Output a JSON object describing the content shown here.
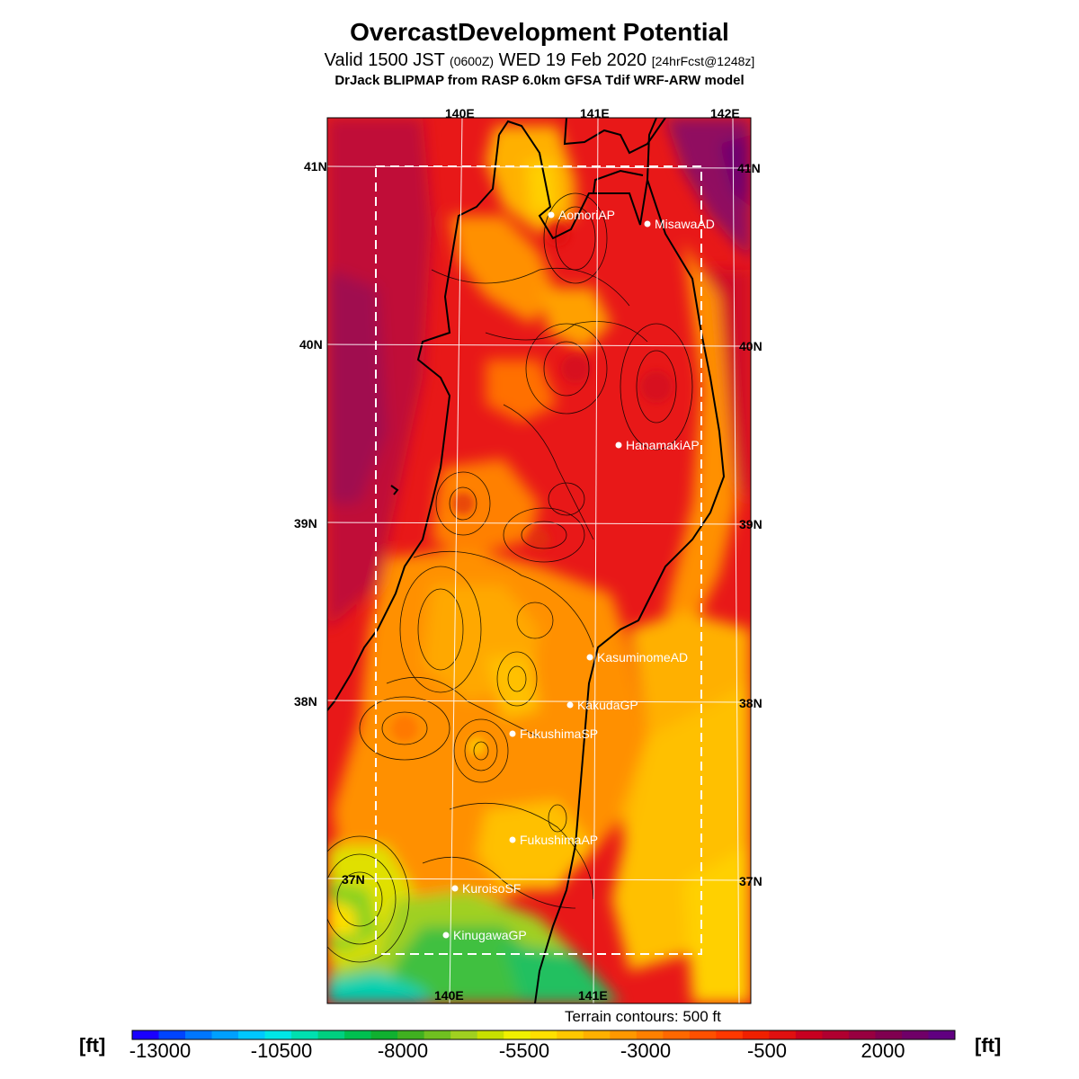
{
  "header": {
    "title": "OvercastDevelopment Potential",
    "valid_prefix": "Valid 1500 JST",
    "valid_utc": "(0600Z)",
    "valid_date": "WED 19 Feb 2020",
    "forecast": "[24hrFcst@1248z]",
    "model_line": "DrJack BLIPMAP from RASP 6.0km GFSA Tdif WRF-ARW model"
  },
  "map": {
    "lon_labels_top": [
      "140E",
      "141E",
      "142E"
    ],
    "lon_labels_bottom": [
      "140E",
      "141E"
    ],
    "lat_labels_left": [
      "41N",
      "40N",
      "39N",
      "38N",
      "37N"
    ],
    "lat_labels_right": [
      "41N",
      "40N",
      "39N",
      "38N",
      "37N"
    ],
    "stations": [
      {
        "name": "AomoriAP"
      },
      {
        "name": "MisawaAD"
      },
      {
        "name": "HanamakiAP"
      },
      {
        "name": "KasuminomeAD"
      },
      {
        "name": "KakudaGP"
      },
      {
        "name": "FukushimaSP"
      },
      {
        "name": "FukushimaAP"
      },
      {
        "name": "KuroisoSF"
      },
      {
        "name": "KinugawaGP"
      }
    ],
    "terrain_note": "Terrain contours: 500 ft"
  },
  "colorbar": {
    "unit_left": "[ft]",
    "unit_right": "[ft]",
    "labels": [
      "-13000",
      "-10500",
      "-8000",
      "-5500",
      "-3000",
      "-500",
      "2000"
    ],
    "colors": [
      "#1a00ff",
      "#0044ff",
      "#0077ff",
      "#00a0ff",
      "#00c8ff",
      "#00e6e6",
      "#00e0b0",
      "#00d080",
      "#00c050",
      "#10b030",
      "#40b020",
      "#70c020",
      "#a0d020",
      "#c8e000",
      "#f0f000",
      "#ffe000",
      "#ffc800",
      "#ffb000",
      "#ff9800",
      "#ff8000",
      "#ff6800",
      "#ff5000",
      "#ff3800",
      "#f02000",
      "#e01010",
      "#c80020",
      "#b00030",
      "#980040",
      "#800050",
      "#700068",
      "#600080"
    ]
  },
  "colors": {
    "background": "#ffffff",
    "ocean_west": "#c81030",
    "land_core": "#f02010",
    "land_orange": "#ff9000",
    "land_yellow": "#ffd000",
    "south_green": "#30c030",
    "south_cyan": "#00d0b0"
  }
}
